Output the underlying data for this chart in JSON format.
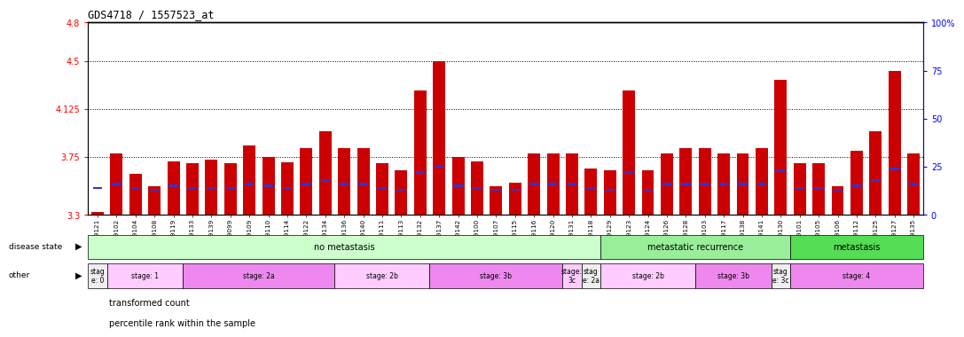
{
  "title": "GDS4718 / 1557523_at",
  "samples": [
    "GSM549121",
    "GSM549102",
    "GSM549104",
    "GSM549108",
    "GSM549119",
    "GSM549133",
    "GSM549139",
    "GSM549099",
    "GSM549109",
    "GSM549110",
    "GSM549114",
    "GSM549122",
    "GSM549134",
    "GSM549136",
    "GSM549140",
    "GSM549111",
    "GSM549113",
    "GSM549132",
    "GSM549137",
    "GSM549142",
    "GSM549100",
    "GSM549107",
    "GSM549115",
    "GSM549116",
    "GSM549120",
    "GSM549131",
    "GSM549118",
    "GSM549129",
    "GSM549123",
    "GSM549124",
    "GSM549126",
    "GSM549128",
    "GSM549103",
    "GSM549117",
    "GSM549138",
    "GSM549141",
    "GSM549130",
    "GSM549101",
    "GSM549105",
    "GSM549106",
    "GSM549112",
    "GSM549125",
    "GSM549127",
    "GSM549135"
  ],
  "red_values": [
    3.32,
    3.78,
    3.62,
    3.52,
    3.72,
    3.7,
    3.73,
    3.7,
    3.84,
    3.75,
    3.71,
    3.82,
    3.95,
    3.82,
    3.82,
    3.7,
    3.65,
    4.27,
    4.5,
    3.75,
    3.72,
    3.52,
    3.55,
    3.78,
    3.78,
    3.78,
    3.66,
    3.65,
    4.27,
    3.65,
    3.78,
    3.82,
    3.82,
    3.78,
    3.78,
    3.82,
    4.35,
    3.7,
    3.7,
    3.52,
    3.8,
    3.95,
    4.42,
    3.78
  ],
  "blue_pct": [
    14,
    16,
    14,
    13,
    15,
    14,
    14,
    14,
    16,
    15,
    14,
    16,
    18,
    16,
    16,
    14,
    13,
    22,
    25,
    15,
    14,
    13,
    13,
    16,
    16,
    16,
    14,
    13,
    22,
    13,
    16,
    16,
    16,
    16,
    16,
    16,
    23,
    14,
    14,
    13,
    15,
    18,
    24,
    16
  ],
  "ylim_left": [
    3.3,
    4.8
  ],
  "ylim_right": [
    0,
    100
  ],
  "yticks_left": [
    3.3,
    3.75,
    4.125,
    4.5,
    4.8
  ],
  "yticks_right": [
    0,
    25,
    50,
    75,
    100
  ],
  "hlines": [
    3.75,
    4.125,
    4.5
  ],
  "bar_color_red": "#cc0000",
  "bar_color_blue": "#3333cc",
  "background_color": "#ffffff",
  "disease_state_groups": [
    {
      "label": "no metastasis",
      "start": 0,
      "end": 27,
      "color": "#ccffcc"
    },
    {
      "label": "metastatic recurrence",
      "start": 27,
      "end": 37,
      "color": "#99ee99"
    },
    {
      "label": "metastasis",
      "start": 37,
      "end": 44,
      "color": "#55dd55"
    }
  ],
  "stage_groups": [
    {
      "label": "stag\ne: 0",
      "start": 0,
      "end": 1,
      "color": "#eeeeee"
    },
    {
      "label": "stage: 1",
      "start": 1,
      "end": 5,
      "color": "#ffccff"
    },
    {
      "label": "stage: 2a",
      "start": 5,
      "end": 13,
      "color": "#ee88ee"
    },
    {
      "label": "stage: 2b",
      "start": 13,
      "end": 18,
      "color": "#ffccff"
    },
    {
      "label": "stage: 3b",
      "start": 18,
      "end": 25,
      "color": "#ee88ee"
    },
    {
      "label": "stage:\n3c",
      "start": 25,
      "end": 26,
      "color": "#ffccff"
    },
    {
      "label": "stag\ne: 2a",
      "start": 26,
      "end": 27,
      "color": "#eeeeee"
    },
    {
      "label": "stage: 2b",
      "start": 27,
      "end": 32,
      "color": "#ffccff"
    },
    {
      "label": "stage: 3b",
      "start": 32,
      "end": 36,
      "color": "#ee88ee"
    },
    {
      "label": "stag\ne: 3c",
      "start": 36,
      "end": 37,
      "color": "#eeeeee"
    },
    {
      "label": "stage: 4",
      "start": 37,
      "end": 44,
      "color": "#ee88ee"
    }
  ],
  "label_disease_state": "disease state",
  "label_other": "other",
  "legend_red": "transformed count",
  "legend_blue": "percentile rank within the sample"
}
